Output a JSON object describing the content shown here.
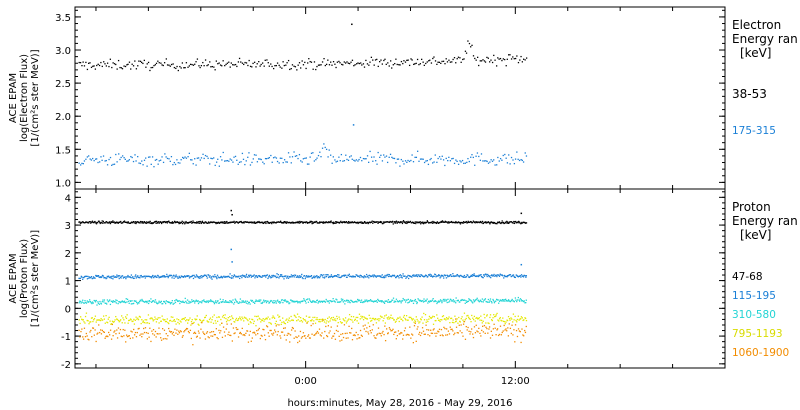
{
  "chart_data": [
    {
      "type": "scatter",
      "panel": "electron",
      "ylabel_lines": [
        "ACE EPAM",
        "log(Electron Flux)",
        "[1/(cm²s ster MeV)]"
      ],
      "ylim": [
        0.9,
        3.65
      ],
      "yticks": [
        1.0,
        1.5,
        2.0,
        2.5,
        3.0,
        3.5
      ],
      "ytick_labels": [
        "1.0",
        "1.5",
        "2.0",
        "2.5",
        "3.0",
        "3.5"
      ],
      "legend_title": [
        "Electron",
        "Energy ran",
        "[keV]"
      ],
      "series": [
        {
          "name": "38-53",
          "color": "#000000",
          "level": 2.79,
          "noise": 0.055,
          "n": 330,
          "drift": [
            [
              -13.0,
              2.78
            ],
            [
              1.0,
              2.8
            ],
            [
              9.0,
              2.85
            ],
            [
              12.6,
              2.88
            ]
          ],
          "bumps": [
            [
              9.3,
              3.12,
              0.15
            ]
          ],
          "spikes": [
            [
              2.6,
              3.4
            ]
          ]
        },
        {
          "name": "175-315",
          "color": "#1a7fd6",
          "level": 1.35,
          "noise": 0.07,
          "n": 330,
          "drift": [
            [
              -13.0,
              1.35
            ],
            [
              12.6,
              1.36
            ]
          ],
          "bumps": [
            [
              1.0,
              1.55,
              0.15
            ]
          ],
          "spikes": [
            [
              2.7,
              1.88
            ]
          ]
        }
      ]
    },
    {
      "type": "scatter",
      "panel": "proton",
      "ylabel_lines": [
        "ACE EPAM",
        "log(Proton Flux)",
        "[1/(cm²s ster MeV)]"
      ],
      "ylim": [
        -2.15,
        4.3
      ],
      "yticks": [
        -2,
        -1,
        0,
        1,
        2,
        3,
        4
      ],
      "ytick_labels": [
        "-2",
        "-1",
        "0",
        "1",
        "2",
        "3",
        "4"
      ],
      "xlabel": "hours:minutes, May 28, 2016 - May 29, 2016",
      "xlim": [
        -13.2,
        24.0
      ],
      "xticks": [
        0,
        12
      ],
      "xtick_labels": [
        "0:00",
        "12:00"
      ],
      "legend_title": [
        "Proton",
        "Energy ran",
        "[keV]"
      ],
      "series": [
        {
          "name": "47-68",
          "color": "#000000",
          "level": 3.12,
          "noise": 0.03,
          "n": 700,
          "drift": [
            [
              -13.0,
              3.12
            ],
            [
              12.6,
              3.12
            ]
          ],
          "bumps": [],
          "spikes": [
            [
              -4.3,
              3.55
            ],
            [
              -4.25,
              3.4
            ],
            [
              12.3,
              3.45
            ]
          ]
        },
        {
          "name": "115-195",
          "color": "#1a7fd6",
          "level": 1.18,
          "noise": 0.05,
          "n": 650,
          "drift": [
            [
              -13.0,
              1.15
            ],
            [
              12.6,
              1.2
            ]
          ],
          "bumps": [],
          "spikes": [
            [
              -4.3,
              2.15
            ],
            [
              -4.25,
              1.7
            ],
            [
              12.3,
              1.6
            ]
          ]
        },
        {
          "name": "310-580",
          "color": "#22d4d4",
          "level": 0.28,
          "noise": 0.06,
          "n": 600,
          "drift": [
            [
              -13.0,
              0.25
            ],
            [
              12.6,
              0.3
            ]
          ],
          "bumps": [],
          "spikes": []
        },
        {
          "name": "795-1193",
          "color": "#e4e800",
          "level": -0.38,
          "noise": 0.12,
          "n": 550,
          "drift": [
            [
              -13.0,
              -0.4
            ],
            [
              12.6,
              -0.35
            ]
          ],
          "bumps": [],
          "spikes": []
        },
        {
          "name": "1060-1900",
          "color": "#f28c00",
          "level": -0.85,
          "noise": 0.22,
          "n": 500,
          "drift": [
            [
              -13.0,
              -0.88
            ],
            [
              12.6,
              -0.82
            ]
          ],
          "bumps": [],
          "spikes": []
        }
      ]
    }
  ]
}
